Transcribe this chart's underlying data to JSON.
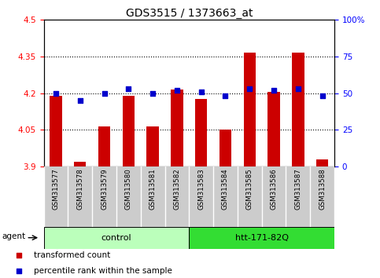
{
  "title": "GDS3515 / 1373663_at",
  "categories": [
    "GSM313577",
    "GSM313578",
    "GSM313579",
    "GSM313580",
    "GSM313581",
    "GSM313582",
    "GSM313583",
    "GSM313584",
    "GSM313585",
    "GSM313586",
    "GSM313587",
    "GSM313588"
  ],
  "bar_values": [
    4.19,
    3.92,
    4.065,
    4.19,
    4.065,
    4.215,
    4.175,
    4.05,
    4.365,
    4.205,
    4.365,
    3.93
  ],
  "dot_values": [
    50,
    45,
    50,
    53,
    50,
    52,
    51,
    48,
    53,
    52,
    53,
    48
  ],
  "bar_color": "#cc0000",
  "dot_color": "#0000cc",
  "ylim_left": [
    3.9,
    4.5
  ],
  "ylim_right": [
    0,
    100
  ],
  "yticks_left": [
    3.9,
    4.05,
    4.2,
    4.35,
    4.5
  ],
  "yticks_right": [
    0,
    25,
    50,
    75,
    100
  ],
  "ytick_labels_left": [
    "3.9",
    "4.05",
    "4.2",
    "4.35",
    "4.5"
  ],
  "ytick_labels_right": [
    "0",
    "25",
    "50",
    "75",
    "100%"
  ],
  "hlines": [
    4.05,
    4.2,
    4.35
  ],
  "bar_bottom": 3.9,
  "agent_label": "agent",
  "groups": [
    {
      "label": "control",
      "start": 0,
      "end": 6,
      "color": "#bbffbb"
    },
    {
      "label": "htt-171-82Q",
      "start": 6,
      "end": 12,
      "color": "#33dd33"
    }
  ],
  "legend_items": [
    {
      "label": "transformed count",
      "color": "#cc0000"
    },
    {
      "label": "percentile rank within the sample",
      "color": "#0000cc"
    }
  ],
  "bg_color": "#ffffff",
  "plot_bg": "#ffffff",
  "tick_area_color": "#cccccc"
}
